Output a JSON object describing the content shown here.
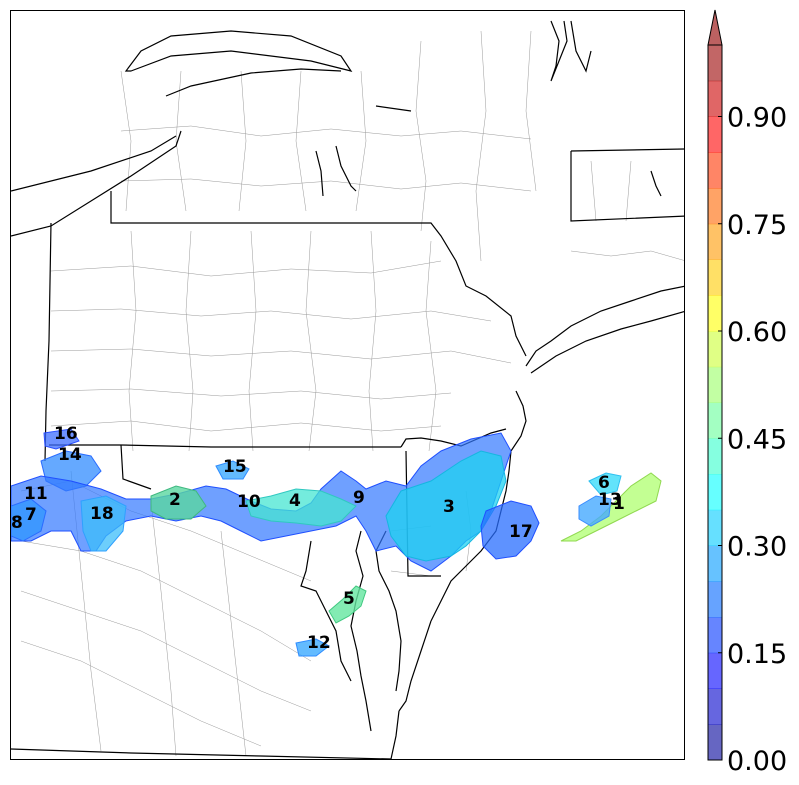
{
  "map": {
    "objects": [
      {
        "id": "1",
        "label": "1"
      },
      {
        "id": "2",
        "label": "2"
      },
      {
        "id": "3",
        "label": "3"
      },
      {
        "id": "4",
        "label": "4"
      },
      {
        "id": "5",
        "label": "5"
      },
      {
        "id": "6",
        "label": "6"
      },
      {
        "id": "7",
        "label": "7"
      },
      {
        "id": "8",
        "label": "8"
      },
      {
        "id": "9",
        "label": "9"
      },
      {
        "id": "10",
        "label": "10"
      },
      {
        "id": "11",
        "label": "11"
      },
      {
        "id": "12",
        "label": "12"
      },
      {
        "id": "13",
        "label": "13"
      },
      {
        "id": "14",
        "label": "14"
      },
      {
        "id": "15",
        "label": "15"
      },
      {
        "id": "16",
        "label": "16"
      },
      {
        "id": "17",
        "label": "17"
      },
      {
        "id": "18",
        "label": "18"
      }
    ]
  },
  "colorbar": {
    "min": 0.0,
    "max": 1.0,
    "extend": "max",
    "tick_labels": [
      "0.00",
      "0.15",
      "0.30",
      "0.45",
      "0.60",
      "0.75",
      "0.90"
    ],
    "colormap": "jet",
    "alpha": 0.6
  }
}
